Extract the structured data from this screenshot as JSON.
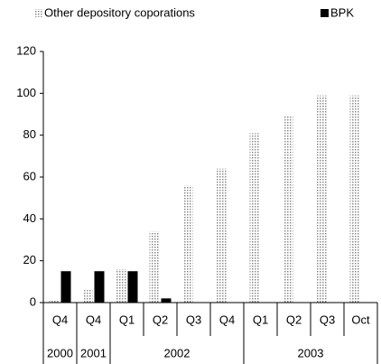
{
  "chart_data": {
    "type": "bar",
    "categories": [
      "Q4",
      "Q4",
      "Q1",
      "Q2",
      "Q3",
      "Q4",
      "Q1",
      "Q2",
      "Q3",
      "Oct"
    ],
    "groups": [
      {
        "label": "2000",
        "span": 1
      },
      {
        "label": "2001",
        "span": 1
      },
      {
        "label": "2002",
        "span": 4
      },
      {
        "label": "2003",
        "span": 4
      }
    ],
    "series": [
      {
        "name": "Other depository coporations",
        "color": "#8c8c8c",
        "pattern": "dotted",
        "values": [
          1,
          6,
          16,
          34,
          56,
          64,
          81,
          89,
          99,
          99
        ]
      },
      {
        "name": "BPK",
        "color": "#000000",
        "pattern": "solid",
        "values": [
          15,
          15,
          15,
          2,
          null,
          null,
          null,
          null,
          null,
          null
        ]
      }
    ],
    "ylim": [
      0,
      120
    ],
    "yticks": [
      0,
      20,
      40,
      60,
      80,
      100,
      120
    ],
    "grid": false,
    "legend": "top"
  }
}
